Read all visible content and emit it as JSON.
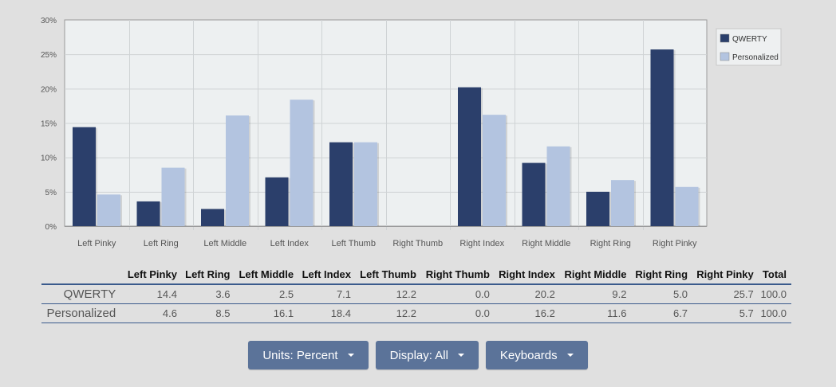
{
  "chart_data": {
    "type": "bar",
    "categories": [
      "Left Pinky",
      "Left Ring",
      "Left Middle",
      "Left Index",
      "Left Thumb",
      "Right Thumb",
      "Right Index",
      "Right Middle",
      "Right Ring",
      "Right Pinky"
    ],
    "series": [
      {
        "name": "QWERTY",
        "color": "#2b3f6b",
        "values": [
          14.4,
          3.6,
          2.5,
          7.1,
          12.2,
          0.0,
          20.2,
          9.2,
          5.0,
          25.7
        ]
      },
      {
        "name": "Personalized",
        "color": "#b3c4e0",
        "values": [
          4.6,
          8.5,
          16.1,
          18.4,
          12.2,
          0.0,
          16.2,
          11.6,
          6.7,
          5.7
        ]
      }
    ],
    "ylim": [
      0,
      30
    ],
    "yticks": [
      "0%",
      "5%",
      "10%",
      "15%",
      "20%",
      "25%",
      "30%"
    ],
    "grid": true,
    "legend": "top-right"
  },
  "table": {
    "headers": [
      "",
      "Left Pinky",
      "Left Ring",
      "Left Middle",
      "Left Index",
      "Left Thumb",
      "Right Thumb",
      "Right Index",
      "Right Middle",
      "Right Ring",
      "Right Pinky",
      "Total"
    ],
    "rows": [
      {
        "label": "QWERTY",
        "cells": [
          "14.4",
          "3.6",
          "2.5",
          "7.1",
          "12.2",
          "0.0",
          "20.2",
          "9.2",
          "5.0",
          "25.7",
          "100.0"
        ]
      },
      {
        "label": "Personalized",
        "cells": [
          "4.6",
          "8.5",
          "16.1",
          "18.4",
          "12.2",
          "0.0",
          "16.2",
          "11.6",
          "6.7",
          "5.7",
          "100.0"
        ]
      }
    ]
  },
  "controls": {
    "units_label": "Units: Percent",
    "display_label": "Display: All",
    "keyboards_label": "Keyboards"
  }
}
